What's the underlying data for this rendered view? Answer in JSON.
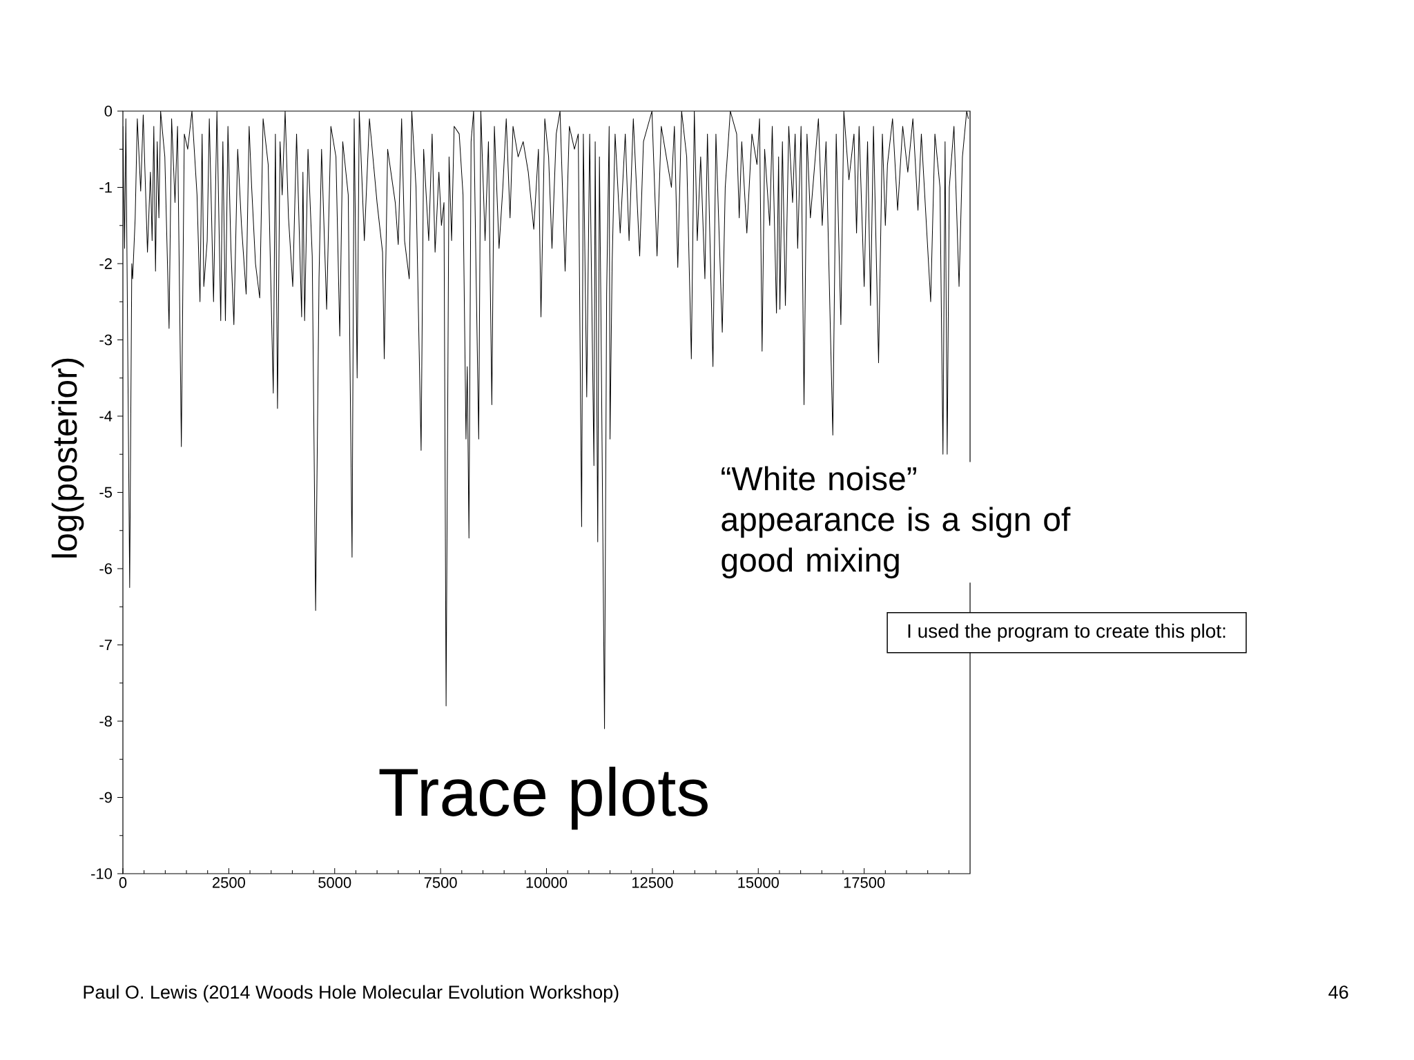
{
  "chart_data": {
    "type": "line",
    "title": "Trace plots",
    "ylabel": "log(posterior)",
    "color": "#000000",
    "line_style": "solid",
    "x": [
      0,
      40,
      70,
      160,
      210,
      230,
      290,
      340,
      420,
      480,
      580,
      650,
      690,
      730,
      770,
      810,
      850,
      890,
      990,
      1090,
      1150,
      1230,
      1290,
      1380,
      1450,
      1530,
      1630,
      1750,
      1820,
      1870,
      1910,
      1990,
      2040,
      2140,
      2220,
      2310,
      2360,
      2420,
      2480,
      2550,
      2620,
      2710,
      2800,
      2910,
      2980,
      3040,
      3130,
      3230,
      3310,
      3430,
      3550,
      3600,
      3650,
      3710,
      3760,
      3830,
      3910,
      4010,
      4100,
      4220,
      4250,
      4290,
      4370,
      4470,
      4550,
      4630,
      4690,
      4810,
      4910,
      5030,
      5120,
      5190,
      5320,
      5410,
      5460,
      5530,
      5580,
      5700,
      5820,
      6000,
      6130,
      6170,
      6250,
      6430,
      6500,
      6580,
      6650,
      6760,
      6820,
      6920,
      7040,
      7100,
      7220,
      7300,
      7370,
      7460,
      7520,
      7580,
      7630,
      7700,
      7760,
      7820,
      7940,
      8030,
      8100,
      8130,
      8170,
      8220,
      8280,
      8340,
      8400,
      8450,
      8550,
      8630,
      8710,
      8770,
      8880,
      8970,
      9050,
      9140,
      9210,
      9330,
      9450,
      9570,
      9700,
      9810,
      9870,
      9960,
      10050,
      10130,
      10230,
      10320,
      10440,
      10540,
      10660,
      10750,
      10830,
      10870,
      10950,
      11020,
      11120,
      11150,
      11210,
      11250,
      11280,
      11370,
      11420,
      11480,
      11500,
      11550,
      11620,
      11740,
      11860,
      11950,
      12050,
      12200,
      12290,
      12490,
      12610,
      12710,
      12950,
      13020,
      13100,
      13190,
      13310,
      13420,
      13490,
      13560,
      13640,
      13740,
      13800,
      13930,
      14000,
      14150,
      14220,
      14340,
      14490,
      14550,
      14610,
      14730,
      14850,
      14970,
      15030,
      15090,
      15150,
      15270,
      15330,
      15430,
      15480,
      15510,
      15570,
      15640,
      15720,
      15810,
      15870,
      15930,
      16010,
      16080,
      16150,
      16230,
      16420,
      16510,
      16600,
      16760,
      16840,
      16950,
      17020,
      17140,
      17260,
      17320,
      17380,
      17500,
      17580,
      17650,
      17720,
      17840,
      17930,
      18000,
      18050,
      18170,
      18290,
      18410,
      18530,
      18650,
      18770,
      18850,
      19070,
      19170,
      19290,
      19360,
      19410,
      19460,
      19510,
      19620,
      19740,
      19820,
      19920,
      19960
    ],
    "values": [
      -0.2,
      -1.8,
      -0.1,
      -6.25,
      -2,
      -2.2,
      -1.4,
      -0.1,
      -1.05,
      -0.05,
      -1.85,
      -0.8,
      -1.7,
      -0.2,
      -2.1,
      -0.4,
      -1.4,
      0,
      -0.6,
      -2.85,
      -0.1,
      -1.2,
      -0.2,
      -4.4,
      -0.3,
      -0.5,
      0,
      -1.1,
      -2.5,
      -0.3,
      -2.3,
      -1.7,
      -0.1,
      -2.5,
      0,
      -2.75,
      -0.4,
      -2.75,
      -0.2,
      -1.8,
      -2.8,
      -0.5,
      -1.5,
      -2.4,
      -0.2,
      -1,
      -2,
      -2.45,
      -0.1,
      -0.7,
      -3.7,
      -0.3,
      -3.9,
      -0.4,
      -1.1,
      0,
      -1.4,
      -2.3,
      -0.3,
      -2.7,
      -0.8,
      -2.75,
      -0.5,
      -1.9,
      -6.55,
      -2.2,
      -0.5,
      -2.6,
      -0.2,
      -0.6,
      -2.95,
      -0.4,
      -1.1,
      -5.85,
      -0.1,
      -3.5,
      0,
      -1.7,
      -0.1,
      -1.2,
      -1.85,
      -3.25,
      -0.5,
      -1.2,
      -1.75,
      -0.1,
      -1.7,
      -2.2,
      0,
      -1,
      -4.45,
      -0.5,
      -1.7,
      -0.3,
      -1.85,
      -0.8,
      -1.5,
      -1.2,
      -7.8,
      -0.6,
      -1.7,
      -0.2,
      -0.3,
      -1.1,
      -4.3,
      -3.35,
      -5.6,
      -0.4,
      0,
      -2.2,
      -4.3,
      0,
      -1.7,
      -0.4,
      -3.85,
      -0.2,
      -1.8,
      -1,
      -0.1,
      -1.4,
      -0.2,
      -0.6,
      -0.4,
      -0.8,
      -1.55,
      -0.5,
      -2.7,
      -0.1,
      -0.6,
      -1.8,
      -0.3,
      0,
      -2.1,
      -0.2,
      -0.5,
      -0.3,
      -5.45,
      -0.3,
      -3.75,
      -0.3,
      -4.65,
      -0.4,
      -5.65,
      -0.6,
      -2.3,
      -8.1,
      -2.4,
      -0.2,
      -4.3,
      -2,
      -0.3,
      -1.6,
      -0.3,
      -1.7,
      -0.1,
      -1.9,
      -0.4,
      0,
      -1.9,
      -0.2,
      -1,
      -0.2,
      -2.05,
      0,
      -0.6,
      -3.25,
      0,
      -1.7,
      -0.6,
      -2.2,
      -0.3,
      -3.35,
      -0.3,
      -2.9,
      -1,
      0,
      -0.3,
      -1.4,
      -0.4,
      -1.6,
      -0.3,
      -0.7,
      -0.1,
      -3.15,
      -0.5,
      -1.5,
      -0.2,
      -2.65,
      -0.6,
      -2.6,
      -0.4,
      -2.55,
      -0.2,
      -1.2,
      -0.3,
      -1.8,
      -0.2,
      -3.85,
      -0.3,
      -1.4,
      -0.1,
      -1.5,
      -0.4,
      -4.25,
      -0.3,
      -2.8,
      0,
      -0.9,
      -0.3,
      -1.6,
      -0.2,
      -2.3,
      -0.4,
      -2.55,
      -0.2,
      -3.3,
      -0.3,
      -1.5,
      -0.7,
      -0.1,
      -1.3,
      -0.2,
      -0.8,
      -0.1,
      -1.3,
      -0.3,
      -2.5,
      -0.3,
      -1,
      -4.5,
      -0.4,
      -4.5,
      -1,
      -0.2,
      -2.3,
      -0.6,
      0,
      -0.1
    ],
    "xlim": [
      0,
      20000
    ],
    "ylim": [
      -10,
      0
    ],
    "xticks": [
      0,
      {
        "value": 500,
        "label": null
      },
      {
        "value": 1000,
        "label": null
      },
      {
        "value": 1500,
        "label": null
      },
      {
        "value": 2000,
        "label": null
      },
      2500,
      {
        "value": 3000,
        "label": null
      },
      {
        "value": 3500,
        "label": null
      },
      {
        "value": 4000,
        "label": null
      },
      {
        "value": 4500,
        "label": null
      },
      5000,
      {
        "value": 5500,
        "label": null
      },
      {
        "value": 6000,
        "label": null
      },
      {
        "value": 6500,
        "label": null
      },
      {
        "value": 7000,
        "label": null
      },
      7500,
      {
        "value": 8000,
        "label": null
      },
      {
        "value": 8500,
        "label": null
      },
      {
        "value": 9000,
        "label": null
      },
      {
        "value": 9500,
        "label": null
      },
      10000,
      {
        "value": 10500,
        "label": null
      },
      {
        "value": 11000,
        "label": null
      },
      {
        "value": 11500,
        "label": null
      },
      {
        "value": 12000,
        "label": null
      },
      12500,
      {
        "value": 13000,
        "label": null
      },
      {
        "value": 13500,
        "label": null
      },
      {
        "value": 14000,
        "label": null
      },
      {
        "value": 14500,
        "label": null
      },
      15000,
      {
        "value": 15500,
        "label": null
      },
      {
        "value": 16000,
        "label": null
      },
      {
        "value": 16500,
        "label": null
      },
      {
        "value": 17000,
        "label": null
      },
      17500,
      {
        "value": 18000,
        "label": null
      },
      {
        "value": 18500,
        "label": null
      },
      {
        "value": 19000,
        "label": null
      },
      {
        "value": 19500,
        "label": null
      }
    ],
    "yticks": [
      -10,
      {
        "value": -9.5,
        "label": null
      },
      -9,
      {
        "value": -8.5,
        "label": null
      },
      -8,
      {
        "value": -7.5,
        "label": null
      },
      -7,
      {
        "value": -6.5,
        "label": null
      },
      -6,
      {
        "value": -5.5,
        "label": null
      },
      -5,
      {
        "value": -4.5,
        "label": null
      },
      -4,
      {
        "value": -3.5,
        "label": null
      },
      -3,
      {
        "value": -2.5,
        "label": null
      },
      -2,
      {
        "value": -1.5,
        "label": null
      },
      -1,
      {
        "value": -0.5,
        "label": null
      },
      0
    ],
    "annotations": [
      "“White noise” appearance is a sign of good mixing",
      "I used the program to create this plot:",
      "Paul O. Lewis (2014 Woods Hole Molecular Evolution Workshop)",
      "46"
    ]
  }
}
